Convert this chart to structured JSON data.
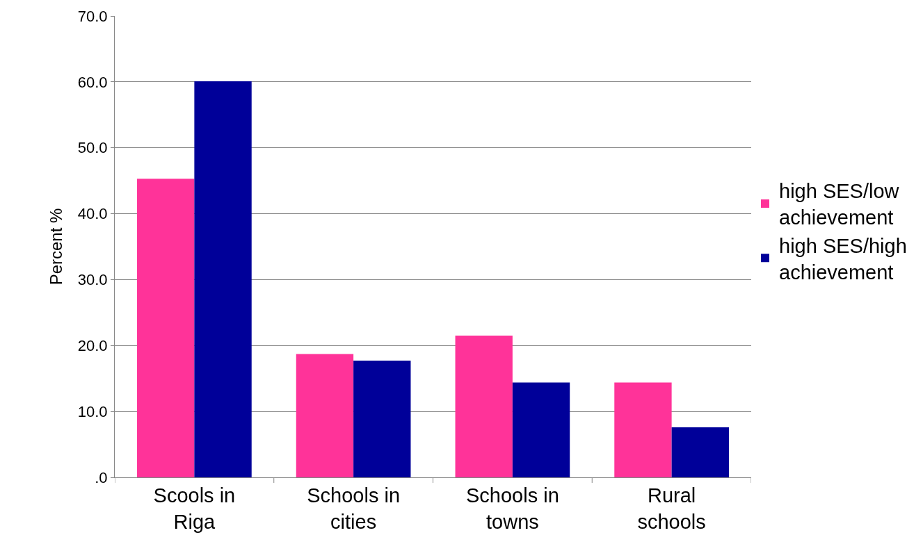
{
  "chart_data": {
    "type": "bar",
    "ylabel": "Percent %",
    "categories": [
      "Scools in Riga",
      "Schools in cities",
      "Schools in towns",
      "Rural schools"
    ],
    "series": [
      {
        "name": "high SES/low achievement",
        "color": "#ff3399",
        "values": [
          45.3,
          18.7,
          21.5,
          14.4
        ]
      },
      {
        "name": "high SES/high achievement",
        "color": "#000099",
        "values": [
          60.1,
          17.7,
          14.4,
          7.6
        ]
      }
    ],
    "ylim": [
      0,
      70
    ],
    "yticks": [
      {
        "value": 0,
        "label": ".0"
      },
      {
        "value": 10,
        "label": "10.0"
      },
      {
        "value": 20,
        "label": "20.0"
      },
      {
        "value": 30,
        "label": "30.0"
      },
      {
        "value": 40,
        "label": "40.0"
      },
      {
        "value": 50,
        "label": "50.0"
      },
      {
        "value": 60,
        "label": "60.0"
      },
      {
        "value": 70,
        "label": "70.0"
      }
    ],
    "grid": "y",
    "legend": "right"
  }
}
